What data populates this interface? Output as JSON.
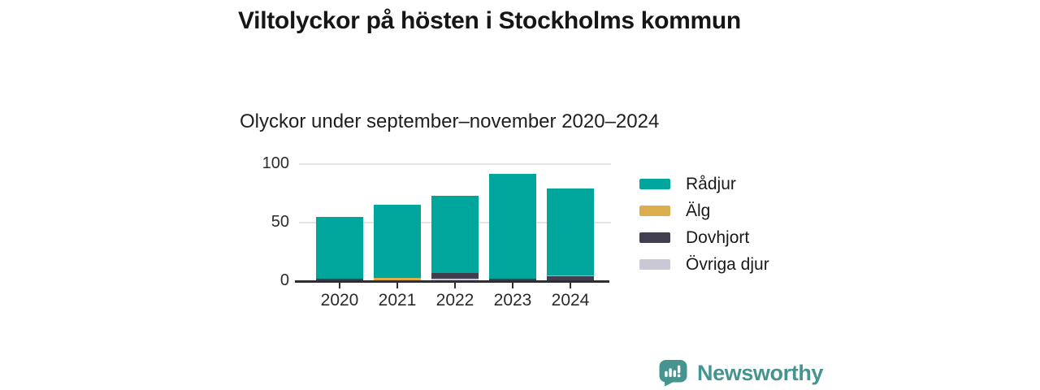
{
  "header": {
    "title": "Viltolyckor på hösten i Stockholms kommun",
    "subtitle": "Olyckor under september–november 2020–2024"
  },
  "chart_data": {
    "type": "bar",
    "stacked": true,
    "title": "Viltolyckor på hösten i Stockholms kommun",
    "subtitle": "Olyckor under september–november 2020–2024",
    "categories": [
      "2020",
      "2021",
      "2022",
      "2023",
      "2024"
    ],
    "series": [
      {
        "name": "Rådjur",
        "color": "#00a69c",
        "values": [
          53,
          62,
          66,
          90,
          74
        ]
      },
      {
        "name": "Älg",
        "color": "#ddae4e",
        "values": [
          0,
          3,
          0,
          0,
          1
        ]
      },
      {
        "name": "Dovhjort",
        "color": "#413e4f",
        "values": [
          2,
          0,
          5,
          2,
          4
        ]
      },
      {
        "name": "Övriga djur",
        "color": "#c9c8d4",
        "values": [
          0,
          0,
          2,
          0,
          0
        ]
      }
    ],
    "stack_order_bottom_to_top": [
      "Övriga djur",
      "Dovhjort",
      "Älg",
      "Rådjur"
    ],
    "totals": [
      55,
      65,
      73,
      92,
      79
    ],
    "ylim": [
      0,
      100
    ],
    "yticks": [
      0,
      50,
      100
    ],
    "grid": "horizontal",
    "legend_position": "right"
  },
  "branding": {
    "logo_text": "Newsworthy",
    "logo_color": "#46948f",
    "logo_icon": "speech-bubble-bar-chart-icon"
  },
  "colors": {
    "background": "#ffffff",
    "title_text": "#161616",
    "axis_text": "#2b2b2b",
    "axis_line": "#2e2e33",
    "gridline": "#e4e4e6"
  }
}
